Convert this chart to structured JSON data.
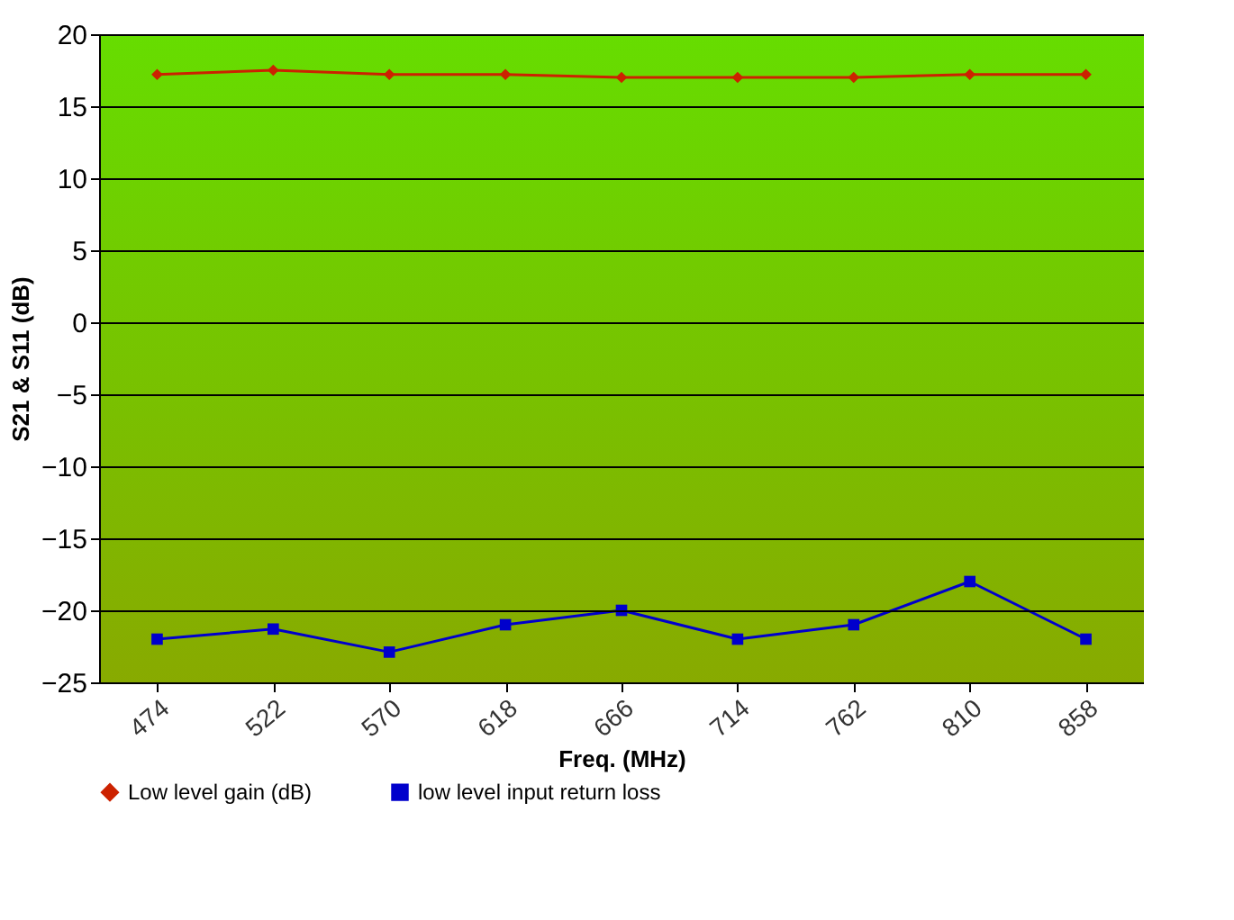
{
  "chart_data": {
    "type": "line",
    "xlabel": "Freq. (MHz)",
    "ylabel": "S21 & S11 (dB)",
    "categories": [
      "474",
      "522",
      "570",
      "618",
      "666",
      "714",
      "762",
      "810",
      "858"
    ],
    "series": [
      {
        "name": "Low level gain (dB)",
        "color": "#cc2200",
        "marker": "diamond",
        "values": [
          17.2,
          17.5,
          17.2,
          17.2,
          17.0,
          17.0,
          17.0,
          17.2,
          17.2
        ]
      },
      {
        "name": "low level input return loss",
        "color": "#0000cc",
        "marker": "square",
        "values": [
          -22,
          -21.3,
          -22.9,
          -21,
          -20,
          -22,
          -21,
          -18,
          -22
        ]
      }
    ],
    "ylim": [
      -25,
      20
    ],
    "yticks": [
      -25,
      -20,
      -15,
      -10,
      -5,
      0,
      5,
      10,
      15,
      20
    ],
    "grid": "y",
    "legend": "bottom",
    "line_style": "solid"
  }
}
